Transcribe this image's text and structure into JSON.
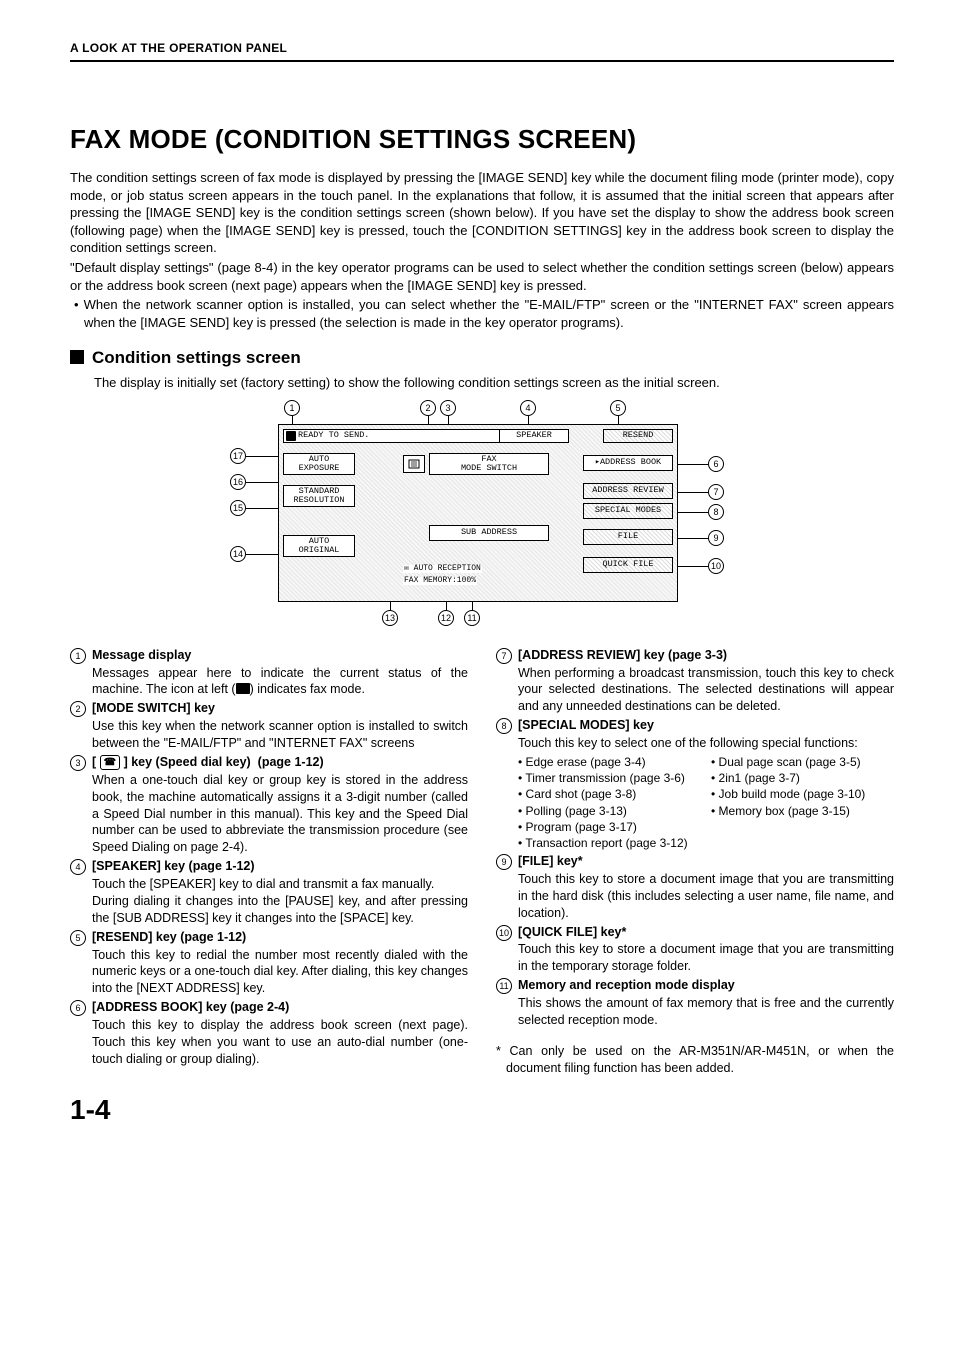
{
  "header": "A LOOK AT THE OPERATION PANEL",
  "title": "FAX MODE (CONDITION SETTINGS SCREEN)",
  "intro": {
    "p1": "The condition settings screen of fax mode is displayed by pressing the [IMAGE SEND] key while the document filing mode (printer mode), copy mode, or job status screen appears in the touch panel. In the explanations that follow, it is assumed that the initial screen that appears after pressing the [IMAGE SEND] key is the condition settings screen (shown below). If you have set the display to show the address book screen (following page) when the [IMAGE SEND] key is pressed, touch the [CONDITION SETTINGS] key in the address book screen to display the condition settings screen.",
    "p2": "\"Default display settings\" (page 8-4) in the key operator programs can be used to select whether the condition settings screen (below) appears or the address book screen (next page) appears when the [IMAGE SEND] key is pressed.",
    "b1": "• When the network scanner option is installed, you can select whether the \"E-MAIL/FTP\" screen or the \"INTERNET FAX\" screen appears when the [IMAGE SEND] key is pressed (the selection is made in the key operator programs)."
  },
  "section_heading": "Condition settings screen",
  "section_sub": "The display is initially set (factory setting) to show the following condition settings screen as the initial screen.",
  "diagram": {
    "msg": "READY TO SEND.",
    "speaker": "SPEAKER",
    "resend": "RESEND",
    "fax": "FAX",
    "mode_switch": "MODE SWITCH",
    "address_book": "ADDRESS BOOK",
    "address_review": "ADDRESS REVIEW",
    "special_modes": "SPECIAL MODES",
    "file": "FILE",
    "quick_file": "QUICK FILE",
    "sub_address": "SUB ADDRESS",
    "auto_reception": "AUTO RECEPTION",
    "fax_memory": "FAX MEMORY:100%",
    "left": {
      "auto": "AUTO",
      "exposure": "EXPOSURE",
      "standard": "STANDARD",
      "resolution": "RESOLUTION",
      "auto2": "AUTO",
      "original": "ORIGINAL"
    }
  },
  "items_left": [
    {
      "n": "1",
      "t": "Message display",
      "d": "Messages appear here to indicate the current status of the machine. The icon at left (    ) indicates fax mode."
    },
    {
      "n": "2",
      "t": "[MODE SWITCH] key",
      "d": "Use this key when the network scanner option is installed to switch between the \"E-MAIL/FTP\" and \"INTERNET FAX\" screens"
    },
    {
      "n": "3",
      "t": "[ ▢ ] key (Speed dial key)  (page 1-12)",
      "d": "When a one-touch dial key or group key is stored in the address book, the machine automatically assigns it a 3-digit number (called a Speed Dial number in this manual). This key and the Speed Dial number can be used to abbreviate the transmission procedure (see Speed Dialing on page 2-4)."
    },
    {
      "n": "4",
      "t": "[SPEAKER] key (page 1-12)",
      "d": "Touch the [SPEAKER] key to dial and transmit a fax manually.\nDuring dialing it changes into the [PAUSE] key, and after pressing the [SUB ADDRESS] key it changes into the [SPACE] key."
    },
    {
      "n": "5",
      "t": "[RESEND] key (page 1-12)",
      "d": "Touch this key to redial the number most recently dialed with the numeric keys or a one-touch dial key. After dialing, this key changes into the [NEXT ADDRESS] key."
    },
    {
      "n": "6",
      "t": "[ADDRESS BOOK] key (page 2-4)",
      "d": "Touch this key to display the address book screen (next page). Touch this key when you want to use an auto-dial number (one-touch dialing or group dialing)."
    }
  ],
  "items_right": [
    {
      "n": "7",
      "t": "[ADDRESS REVIEW] key (page 3-3)",
      "d": "When performing a broadcast transmission, touch this key to check your selected destinations. The selected destinations will appear and any unneeded destinations can be deleted."
    },
    {
      "n": "8",
      "t": "[SPECIAL MODES] key",
      "d": "Touch this key to select one of the following special functions:",
      "sublist": [
        "• Edge erase (page 3-4)",
        "• Dual page scan (page 3-5)",
        "• Timer transmission (page 3-6)",
        "• 2in1 (page 3-7)",
        "• Card shot (page 3-8)",
        "• Job build mode (page 3-10)",
        "• Polling (page 3-13)",
        "• Memory box (page 3-15)",
        "• Program (page 3-17)",
        "",
        "• Transaction report (page 3-12)",
        ""
      ]
    },
    {
      "n": "9",
      "t": "[FILE] key*",
      "d": "Touch this key to store a document image that you are transmitting in the hard disk (this includes selecting a user name, file name, and location)."
    },
    {
      "n": "10",
      "t": "[QUICK FILE] key*",
      "d": "Touch this key to store a document image that you are transmitting in the temporary storage folder."
    },
    {
      "n": "11",
      "t": "Memory and reception mode display",
      "d": "This shows the amount of fax memory that is free and the currently selected reception mode."
    }
  ],
  "footnote": "* Can only be used on the AR-M351N/AR-M451N, or when the document filing function has been added.",
  "pagenum": "1-4"
}
